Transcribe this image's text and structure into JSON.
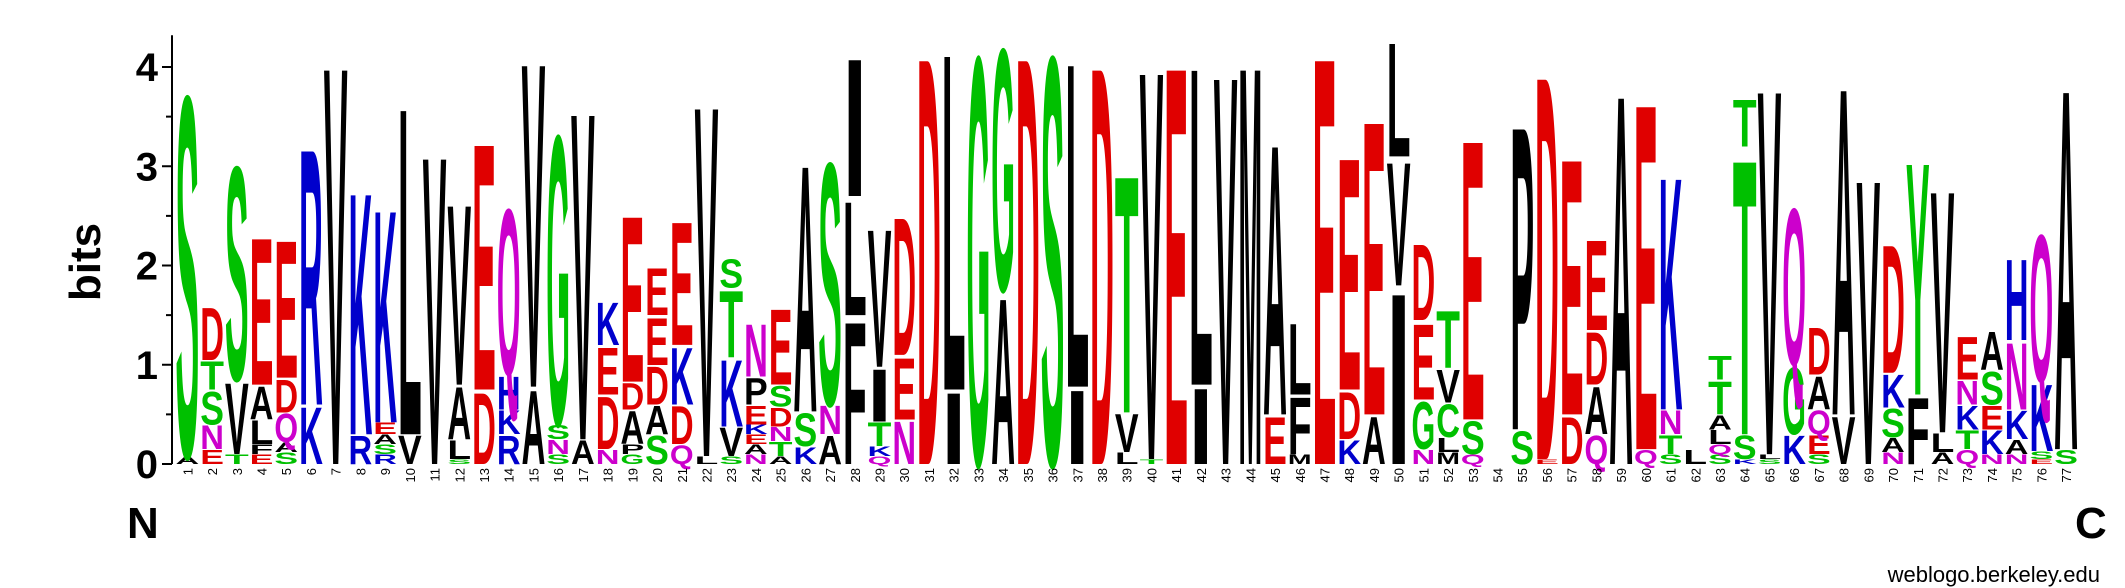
{
  "chart_data": {
    "type": "sequence-logo",
    "ylabel": "bits",
    "ylim": [
      0,
      4.32
    ],
    "yticks": [
      "0",
      "1",
      "2",
      "3",
      "4"
    ],
    "n_label": "N",
    "c_label": "C",
    "credit": "weblogo.berkeley.edu",
    "colors": {
      "A": "#000000",
      "V": "#000000",
      "L": "#000000",
      "I": "#000000",
      "M": "#000000",
      "F": "#000000",
      "P": "#000000",
      "W": "#000000",
      "S": "#00C000",
      "T": "#00C000",
      "G": "#00C000",
      "Y": "#00C000",
      "C": "#00C000",
      "N": "#CC00CC",
      "Q": "#CC00CC",
      "D": "#E00000",
      "E": "#E00000",
      "K": "#0000CC",
      "R": "#0000CC",
      "H": "#0000CC"
    },
    "positions": [
      {
        "pos": 1,
        "stack": [
          [
            "A",
            0.08
          ],
          [
            "S",
            3.8
          ]
        ]
      },
      {
        "pos": 2,
        "stack": [
          [
            "E",
            0.15
          ],
          [
            "N",
            0.25
          ],
          [
            "S",
            0.35
          ],
          [
            "T",
            0.3
          ],
          [
            "D",
            0.55
          ]
        ]
      },
      {
        "pos": 3,
        "stack": [
          [
            "T",
            0.1
          ],
          [
            "V",
            0.75
          ],
          [
            "S",
            2.25
          ]
        ]
      },
      {
        "pos": 4,
        "stack": [
          [
            "E",
            0.1
          ],
          [
            "F",
            0.1
          ],
          [
            "L",
            0.25
          ],
          [
            "A",
            0.35
          ],
          [
            "E",
            1.55
          ]
        ]
      },
      {
        "pos": 5,
        "stack": [
          [
            "S",
            0.12
          ],
          [
            "A",
            0.1
          ],
          [
            "Q",
            0.3
          ],
          [
            "D",
            0.35
          ],
          [
            "E",
            1.45
          ]
        ]
      },
      {
        "pos": 6,
        "stack": [
          [
            "K",
            0.6
          ],
          [
            "R",
            2.7
          ]
        ]
      },
      {
        "pos": 7,
        "stack": [
          [
            "V",
            4.2
          ]
        ]
      },
      {
        "pos": 8,
        "stack": [
          [
            "R",
            0.3
          ],
          [
            "K",
            2.55
          ]
        ]
      },
      {
        "pos": 9,
        "stack": [
          [
            "R",
            0.1
          ],
          [
            "S",
            0.1
          ],
          [
            "A",
            0.1
          ],
          [
            "E",
            0.12
          ],
          [
            "K",
            2.24
          ]
        ]
      },
      {
        "pos": 10,
        "stack": [
          [
            "V",
            0.3
          ],
          [
            "L",
            3.45
          ]
        ]
      },
      {
        "pos": 11,
        "stack": [
          [
            "V",
            3.25
          ]
        ]
      },
      {
        "pos": 12,
        "stack": [
          [
            "S",
            0.05
          ],
          [
            "L",
            0.2
          ],
          [
            "A",
            0.55
          ],
          [
            "V",
            1.9
          ]
        ]
      },
      {
        "pos": 13,
        "stack": [
          [
            "D",
            0.75
          ],
          [
            "E",
            2.6
          ]
        ]
      },
      {
        "pos": 14,
        "stack": [
          [
            "R",
            0.3
          ],
          [
            "K",
            0.25
          ],
          [
            "H",
            0.35
          ],
          [
            "Q",
            1.75
          ]
        ]
      },
      {
        "pos": 15,
        "stack": [
          [
            "A",
            0.78
          ],
          [
            "V",
            3.42
          ]
        ]
      },
      {
        "pos": 16,
        "stack": [
          [
            "S",
            0.1
          ],
          [
            "N",
            0.15
          ],
          [
            "S",
            0.15
          ],
          [
            "G",
            3.05
          ]
        ]
      },
      {
        "pos": 17,
        "stack": [
          [
            "A",
            0.25
          ],
          [
            "V",
            3.45
          ]
        ]
      },
      {
        "pos": 18,
        "stack": [
          [
            "N",
            0.15
          ],
          [
            "D",
            0.55
          ],
          [
            "E",
            0.5
          ],
          [
            "K",
            0.45
          ]
        ]
      },
      {
        "pos": 19,
        "stack": [
          [
            "G",
            0.1
          ],
          [
            "P",
            0.1
          ],
          [
            "A",
            0.35
          ],
          [
            "D",
            0.28
          ],
          [
            "E",
            1.75
          ]
        ]
      },
      {
        "pos": 20,
        "stack": [
          [
            "S",
            0.3
          ],
          [
            "A",
            0.3
          ],
          [
            "D",
            0.4
          ],
          [
            "E",
            0.5
          ],
          [
            "E",
            0.5
          ]
        ]
      },
      {
        "pos": 21,
        "stack": [
          [
            "Q",
            0.2
          ],
          [
            "D",
            0.4
          ],
          [
            "K",
            0.6
          ],
          [
            "E",
            1.3
          ]
        ]
      },
      {
        "pos": 22,
        "stack": [
          [
            "L",
            0.08
          ],
          [
            "V",
            3.7
          ]
        ]
      },
      {
        "pos": 23,
        "stack": [
          [
            "S",
            0.08
          ],
          [
            "V",
            0.3
          ],
          [
            "K",
            0.7
          ],
          [
            "T",
            0.7
          ],
          [
            "S",
            0.3
          ]
        ]
      },
      {
        "pos": 24,
        "stack": [
          [
            "N",
            0.1
          ],
          [
            "A",
            0.1
          ],
          [
            "E",
            0.1
          ],
          [
            "K",
            0.1
          ],
          [
            "E",
            0.2
          ],
          [
            "P",
            0.28
          ],
          [
            "N",
            0.55
          ]
        ]
      },
      {
        "pos": 25,
        "stack": [
          [
            "A",
            0.08
          ],
          [
            "T",
            0.15
          ],
          [
            "N",
            0.15
          ],
          [
            "D",
            0.2
          ],
          [
            "S",
            0.22
          ],
          [
            "E",
            0.8
          ]
        ]
      },
      {
        "pos": 26,
        "stack": [
          [
            "K",
            0.18
          ],
          [
            "S",
            0.35
          ],
          [
            "A",
            2.6
          ]
        ]
      },
      {
        "pos": 27,
        "stack": [
          [
            "A",
            0.3
          ],
          [
            "N",
            0.3
          ],
          [
            "S",
            2.55
          ]
        ]
      },
      {
        "pos": 28,
        "stack": [
          [
            "F",
            1.5
          ],
          [
            "L",
            1.2
          ],
          [
            "I",
            1.45
          ]
        ]
      },
      {
        "pos": 29,
        "stack": [
          [
            "Q",
            0.08
          ],
          [
            "K",
            0.1
          ],
          [
            "T",
            0.25
          ],
          [
            "I",
            0.55
          ],
          [
            "V",
            1.45
          ]
        ]
      },
      {
        "pos": 30,
        "stack": [
          [
            "N",
            0.45
          ],
          [
            "E",
            0.65
          ],
          [
            "D",
            1.45
          ]
        ]
      },
      {
        "pos": 31,
        "stack": [
          [
            "D",
            4.3
          ]
        ]
      },
      {
        "pos": 32,
        "stack": [
          [
            "I",
            0.75
          ],
          [
            "L",
            3.55
          ]
        ]
      },
      {
        "pos": 33,
        "stack": [
          [
            "G",
            4.3
          ]
        ]
      },
      {
        "pos": 34,
        "stack": [
          [
            "A",
            1.75
          ],
          [
            "G",
            2.55
          ]
        ]
      },
      {
        "pos": 35,
        "stack": [
          [
            "D",
            4.3
          ]
        ]
      },
      {
        "pos": 36,
        "stack": [
          [
            "S",
            4.3
          ]
        ]
      },
      {
        "pos": 37,
        "stack": [
          [
            "I",
            0.78
          ],
          [
            "L",
            3.42
          ]
        ]
      },
      {
        "pos": 38,
        "stack": [
          [
            "D",
            4.2
          ]
        ]
      },
      {
        "pos": 39,
        "stack": [
          [
            "L",
            0.12
          ],
          [
            "V",
            0.4
          ],
          [
            "T",
            2.5
          ]
        ]
      },
      {
        "pos": 40,
        "stack": [
          [
            "T",
            0.05
          ],
          [
            "V",
            4.1
          ]
        ]
      },
      {
        "pos": 41,
        "stack": [
          [
            "E",
            4.2
          ]
        ]
      },
      {
        "pos": 42,
        "stack": [
          [
            "I",
            0.8
          ],
          [
            "L",
            3.35
          ]
        ]
      },
      {
        "pos": 43,
        "stack": [
          [
            "V",
            4.1
          ]
        ]
      },
      {
        "pos": 44,
        "stack": [
          [
            "M",
            4.2
          ]
        ]
      },
      {
        "pos": 45,
        "stack": [
          [
            "E",
            0.5
          ],
          [
            "A",
            2.85
          ]
        ]
      },
      {
        "pos": 46,
        "stack": [
          [
            "M",
            0.1
          ],
          [
            "F",
            0.6
          ],
          [
            "L",
            0.75
          ]
        ]
      },
      {
        "pos": 47,
        "stack": [
          [
            "E",
            4.3
          ]
        ]
      },
      {
        "pos": 48,
        "stack": [
          [
            "K",
            0.25
          ],
          [
            "D",
            0.5
          ],
          [
            "E",
            2.45
          ]
        ]
      },
      {
        "pos": 49,
        "stack": [
          [
            "A",
            0.5
          ],
          [
            "E",
            3.1
          ]
        ]
      },
      {
        "pos": 50,
        "stack": [
          [
            "I",
            1.8
          ],
          [
            "V",
            1.3
          ],
          [
            "L",
            1.2
          ]
        ]
      },
      {
        "pos": 51,
        "stack": [
          [
            "N",
            0.15
          ],
          [
            "G",
            0.5
          ],
          [
            "E",
            0.8
          ],
          [
            "D",
            0.8
          ]
        ]
      },
      {
        "pos": 52,
        "stack": [
          [
            "M",
            0.12
          ],
          [
            "L",
            0.15
          ],
          [
            "C",
            0.35
          ],
          [
            "V",
            0.35
          ],
          [
            "T",
            0.6
          ]
        ]
      },
      {
        "pos": 53,
        "stack": [
          [
            "Q",
            0.1
          ],
          [
            "S",
            0.35
          ],
          [
            "E",
            2.95
          ]
        ]
      },
      {
        "pos": 54,
        "stack": []
      },
      {
        "pos": 55,
        "stack": [
          [
            "S",
            0.35
          ],
          [
            "P",
            3.2
          ]
        ]
      },
      {
        "pos": 56,
        "stack": [
          [
            "E",
            0.05
          ],
          [
            "D",
            4.05
          ]
        ]
      },
      {
        "pos": 57,
        "stack": [
          [
            "D",
            0.5
          ],
          [
            "E",
            2.7
          ]
        ]
      },
      {
        "pos": 58,
        "stack": [
          [
            "Q",
            0.3
          ],
          [
            "A",
            0.5
          ],
          [
            "D",
            0.55
          ],
          [
            "E",
            0.95
          ]
        ]
      },
      {
        "pos": 59,
        "stack": [
          [
            "A",
            3.9
          ]
        ]
      },
      {
        "pos": 60,
        "stack": [
          [
            "Q",
            0.15
          ],
          [
            "E",
            3.65
          ]
        ]
      },
      {
        "pos": 61,
        "stack": [
          [
            "S",
            0.1
          ],
          [
            "T",
            0.2
          ],
          [
            "N",
            0.25
          ],
          [
            "K",
            2.45
          ]
        ]
      },
      {
        "pos": 62,
        "stack": [
          [
            "L",
            0.15
          ]
        ]
      },
      {
        "pos": 63,
        "stack": [
          [
            "S",
            0.1
          ],
          [
            "Q",
            0.1
          ],
          [
            "L",
            0.15
          ],
          [
            "A",
            0.15
          ],
          [
            "T",
            0.35
          ],
          [
            "T",
            0.25
          ]
        ]
      },
      {
        "pos": 64,
        "stack": [
          [
            "K",
            0.05
          ],
          [
            "S",
            0.25
          ],
          [
            "T",
            2.9
          ],
          [
            "T",
            0.5
          ]
        ]
      },
      {
        "pos": 65,
        "stack": [
          [
            "S",
            0.05
          ],
          [
            "L",
            0.05
          ],
          [
            "V",
            3.85
          ]
        ]
      },
      {
        "pos": 66,
        "stack": [
          [
            "K",
            0.3
          ],
          [
            "G",
            0.7
          ],
          [
            "Q",
            1.65
          ]
        ]
      },
      {
        "pos": 67,
        "stack": [
          [
            "S",
            0.1
          ],
          [
            "E",
            0.2
          ],
          [
            "Q",
            0.25
          ],
          [
            "A",
            0.35
          ],
          [
            "D",
            0.5
          ]
        ]
      },
      {
        "pos": 68,
        "stack": [
          [
            "V",
            0.5
          ],
          [
            "A",
            3.45
          ]
        ]
      },
      {
        "pos": 69,
        "stack": [
          [
            "V",
            3.0
          ]
        ]
      },
      {
        "pos": 70,
        "stack": [
          [
            "N",
            0.12
          ],
          [
            "A",
            0.15
          ],
          [
            "S",
            0.3
          ],
          [
            "K",
            0.35
          ],
          [
            "D",
            1.35
          ]
        ]
      },
      {
        "pos": 71,
        "stack": [
          [
            "F",
            0.7
          ],
          [
            "Y",
            2.45
          ]
        ]
      },
      {
        "pos": 72,
        "stack": [
          [
            "A",
            0.12
          ],
          [
            "L",
            0.2
          ],
          [
            "V",
            2.55
          ]
        ]
      },
      {
        "pos": 73,
        "stack": [
          [
            "Q",
            0.15
          ],
          [
            "T",
            0.2
          ],
          [
            "K",
            0.25
          ],
          [
            "N",
            0.25
          ],
          [
            "E",
            0.45
          ]
        ]
      },
      {
        "pos": 74,
        "stack": [
          [
            "N",
            0.1
          ],
          [
            "K",
            0.25
          ],
          [
            "E",
            0.25
          ],
          [
            "S",
            0.35
          ],
          [
            "A",
            0.4
          ]
        ]
      },
      {
        "pos": 75,
        "stack": [
          [
            "N",
            0.1
          ],
          [
            "A",
            0.15
          ],
          [
            "K",
            0.3
          ],
          [
            "N",
            0.7
          ],
          [
            "H",
            0.85
          ]
        ]
      },
      {
        "pos": 76,
        "stack": [
          [
            "E",
            0.05
          ],
          [
            "S",
            0.08
          ],
          [
            "K",
            0.7
          ],
          [
            "Q",
            1.55
          ]
        ]
      },
      {
        "pos": 77,
        "stack": [
          [
            "S",
            0.15
          ],
          [
            "A",
            3.8
          ]
        ]
      }
    ]
  }
}
